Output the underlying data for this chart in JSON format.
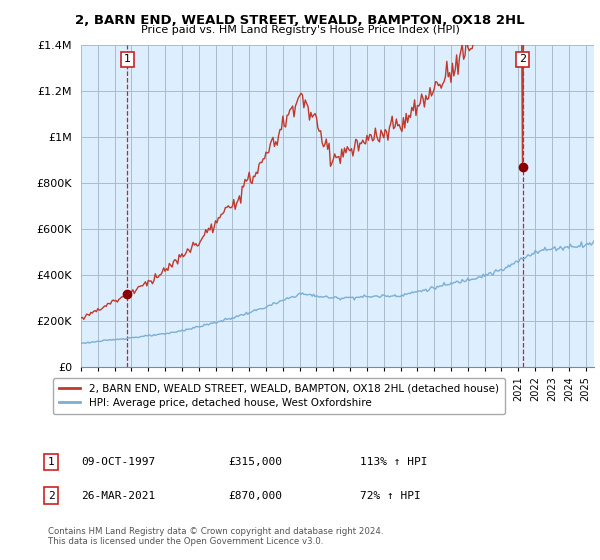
{
  "title": "2, BARN END, WEALD STREET, WEALD, BAMPTON, OX18 2HL",
  "subtitle": "Price paid vs. HM Land Registry's House Price Index (HPI)",
  "sale1_date": "09-OCT-1997",
  "sale1_price": 315000,
  "sale1_hpi": "113%",
  "sale2_date": "26-MAR-2021",
  "sale2_price": 870000,
  "sale2_hpi": "72%",
  "legend_line1": "2, BARN END, WEALD STREET, WEALD, BAMPTON, OX18 2HL (detached house)",
  "legend_line2": "HPI: Average price, detached house, West Oxfordshire",
  "copyright": "Contains HM Land Registry data © Crown copyright and database right 2024.\nThis data is licensed under the Open Government Licence v3.0.",
  "hpi_color": "#7bafd4",
  "price_color": "#c0392b",
  "marker_color": "#8b0000",
  "vline_color": "#cc2222",
  "background_color": "#ffffff",
  "chart_bg_color": "#ddeeff",
  "grid_color": "#aabbcc",
  "ylim": [
    0,
    1400000
  ],
  "xlim_start": 1995.0,
  "xlim_end": 2025.5,
  "t1": 1997.75,
  "t2": 2021.25
}
